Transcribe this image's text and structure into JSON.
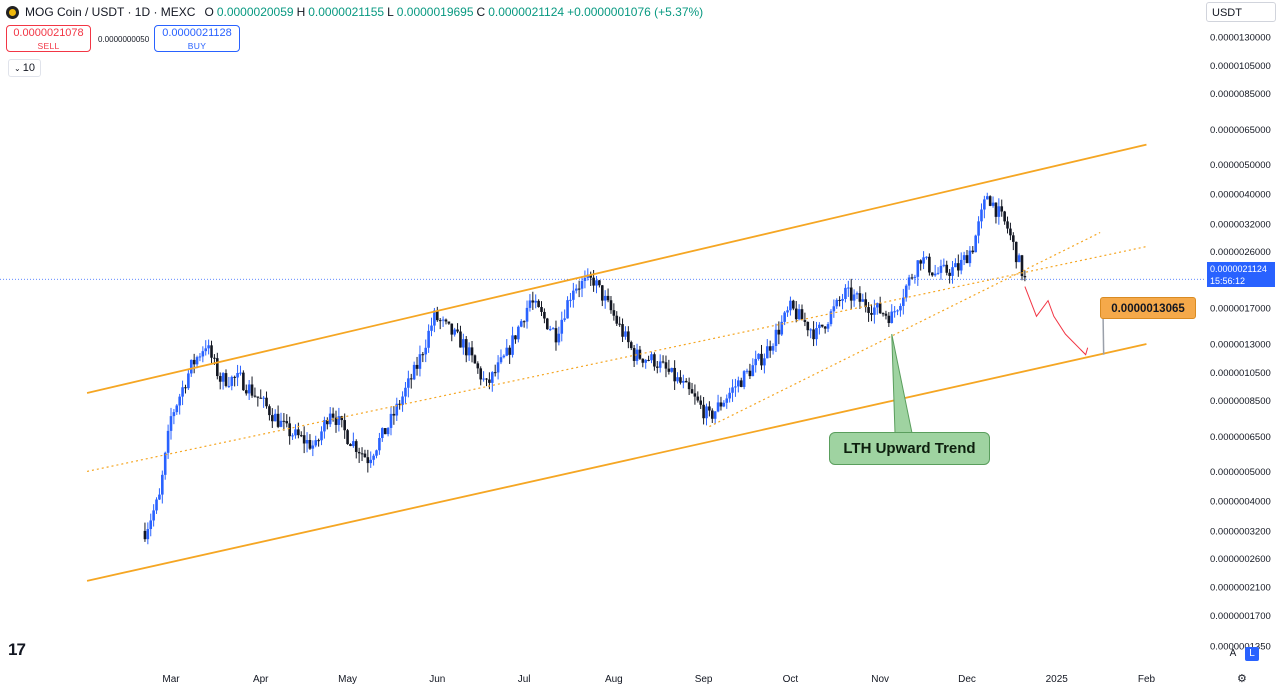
{
  "header": {
    "title": "MOG Coin / USDT · 1D · MEXC",
    "ohlc": [
      {
        "k": "O",
        "v": "0.0000020059"
      },
      {
        "k": "H",
        "v": "0.0000021155"
      },
      {
        "k": "L",
        "v": "0.0000019695"
      },
      {
        "k": "C",
        "v": "0.0000021124"
      }
    ],
    "change": "+0.0000001076 (+5.37%)"
  },
  "trade": {
    "sell_price": "0.0000021078",
    "sell_label": "SELL",
    "spread": "0.0000000050",
    "buy_price": "0.0000021128",
    "buy_label": "BUY"
  },
  "indicator_count": "10",
  "currency": "USDT",
  "colors": {
    "up": "#2962ff",
    "down": "#131722",
    "channel": "#f5a623",
    "projection": "#f23645",
    "price_line": "#2962ff",
    "label_green": "#9fd3a1"
  },
  "chart_data": {
    "type": "candlestick",
    "scale": "log",
    "x_ticks": [
      "Mar",
      "Apr",
      "May",
      "Jun",
      "Jul",
      "Aug",
      "Sep",
      "Oct",
      "Nov",
      "Dec",
      "2025",
      "Feb"
    ],
    "y_ticks": [
      "0.0000130000",
      "0.0000105000",
      "0.0000085000",
      "0.0000065000",
      "0.0000050000",
      "0.0000040000",
      "0.0000032000",
      "0.0000026000",
      "0.0000017000",
      "0.0000013000",
      "0.0000010500",
      "0.0000008500",
      "0.0000006500",
      "0.0000005000",
      "0.0000004000",
      "0.0000003200",
      "0.0000002600",
      "0.0000002100",
      "0.0000001700",
      "0.0000001350"
    ],
    "current_price": "0.0000021124",
    "countdown": "15:56:12",
    "target_price": "0.0000013065",
    "annotation": "LTH Upward Trend",
    "price_path": [
      [
        "Feb 21",
        3.2e-07
      ],
      [
        "Feb 26",
        4.1e-07
      ],
      [
        "Mar 1",
        7.5e-07
      ],
      [
        "Mar 8",
        1.1e-06
      ],
      [
        "Mar 13",
        1.3e-06
      ],
      [
        "Mar 18",
        1e-06
      ],
      [
        "Mar 25",
        1e-06
      ],
      [
        "Apr 1",
        8.5e-07
      ],
      [
        "Apr 10",
        6.8e-07
      ],
      [
        "Apr 20",
        6e-07
      ],
      [
        "Apr 25",
        8e-07
      ],
      [
        "May 1",
        6.5e-07
      ],
      [
        "May 8",
        5.5e-07
      ],
      [
        "May 15",
        7e-07
      ],
      [
        "May 25",
        1.1e-06
      ],
      [
        "May 31",
        1.6e-06
      ],
      [
        "Jun 10",
        1.3e-06
      ],
      [
        "Jun 18",
        9.5e-07
      ],
      [
        "Jun 25",
        1.2e-06
      ],
      [
        "Jul 3",
        1.8e-06
      ],
      [
        "Jul 12",
        1.4e-06
      ],
      [
        "Jul 18",
        2e-06
      ],
      [
        "Jul 25",
        2.1e-06
      ],
      [
        "Aug 1",
        1.6e-06
      ],
      [
        "Aug 8",
        1.2e-06
      ],
      [
        "Aug 15",
        1.15e-06
      ],
      [
        "Aug 25",
        9.5e-07
      ],
      [
        "Sep 3",
        7.5e-07
      ],
      [
        "Sep 12",
        9.5e-07
      ],
      [
        "Sep 22",
        1.2e-06
      ],
      [
        "Oct 1",
        1.7e-06
      ],
      [
        "Oct 10",
        1.4e-06
      ],
      [
        "Oct 20",
        1.9e-06
      ],
      [
        "Oct 30",
        1.7e-06
      ],
      [
        "Nov 5",
        1.6e-06
      ],
      [
        "Nov 15",
        2.5e-06
      ],
      [
        "Nov 20",
        2.2e-06
      ],
      [
        "Nov 28",
        2.3e-06
      ],
      [
        "Dec 3",
        2.7e-06
      ],
      [
        "Dec 8",
        4e-06
      ],
      [
        "Dec 15",
        3.1e-06
      ],
      [
        "Dec 21",
        2.1e-06
      ]
    ],
    "grid": false,
    "legend": "none"
  }
}
